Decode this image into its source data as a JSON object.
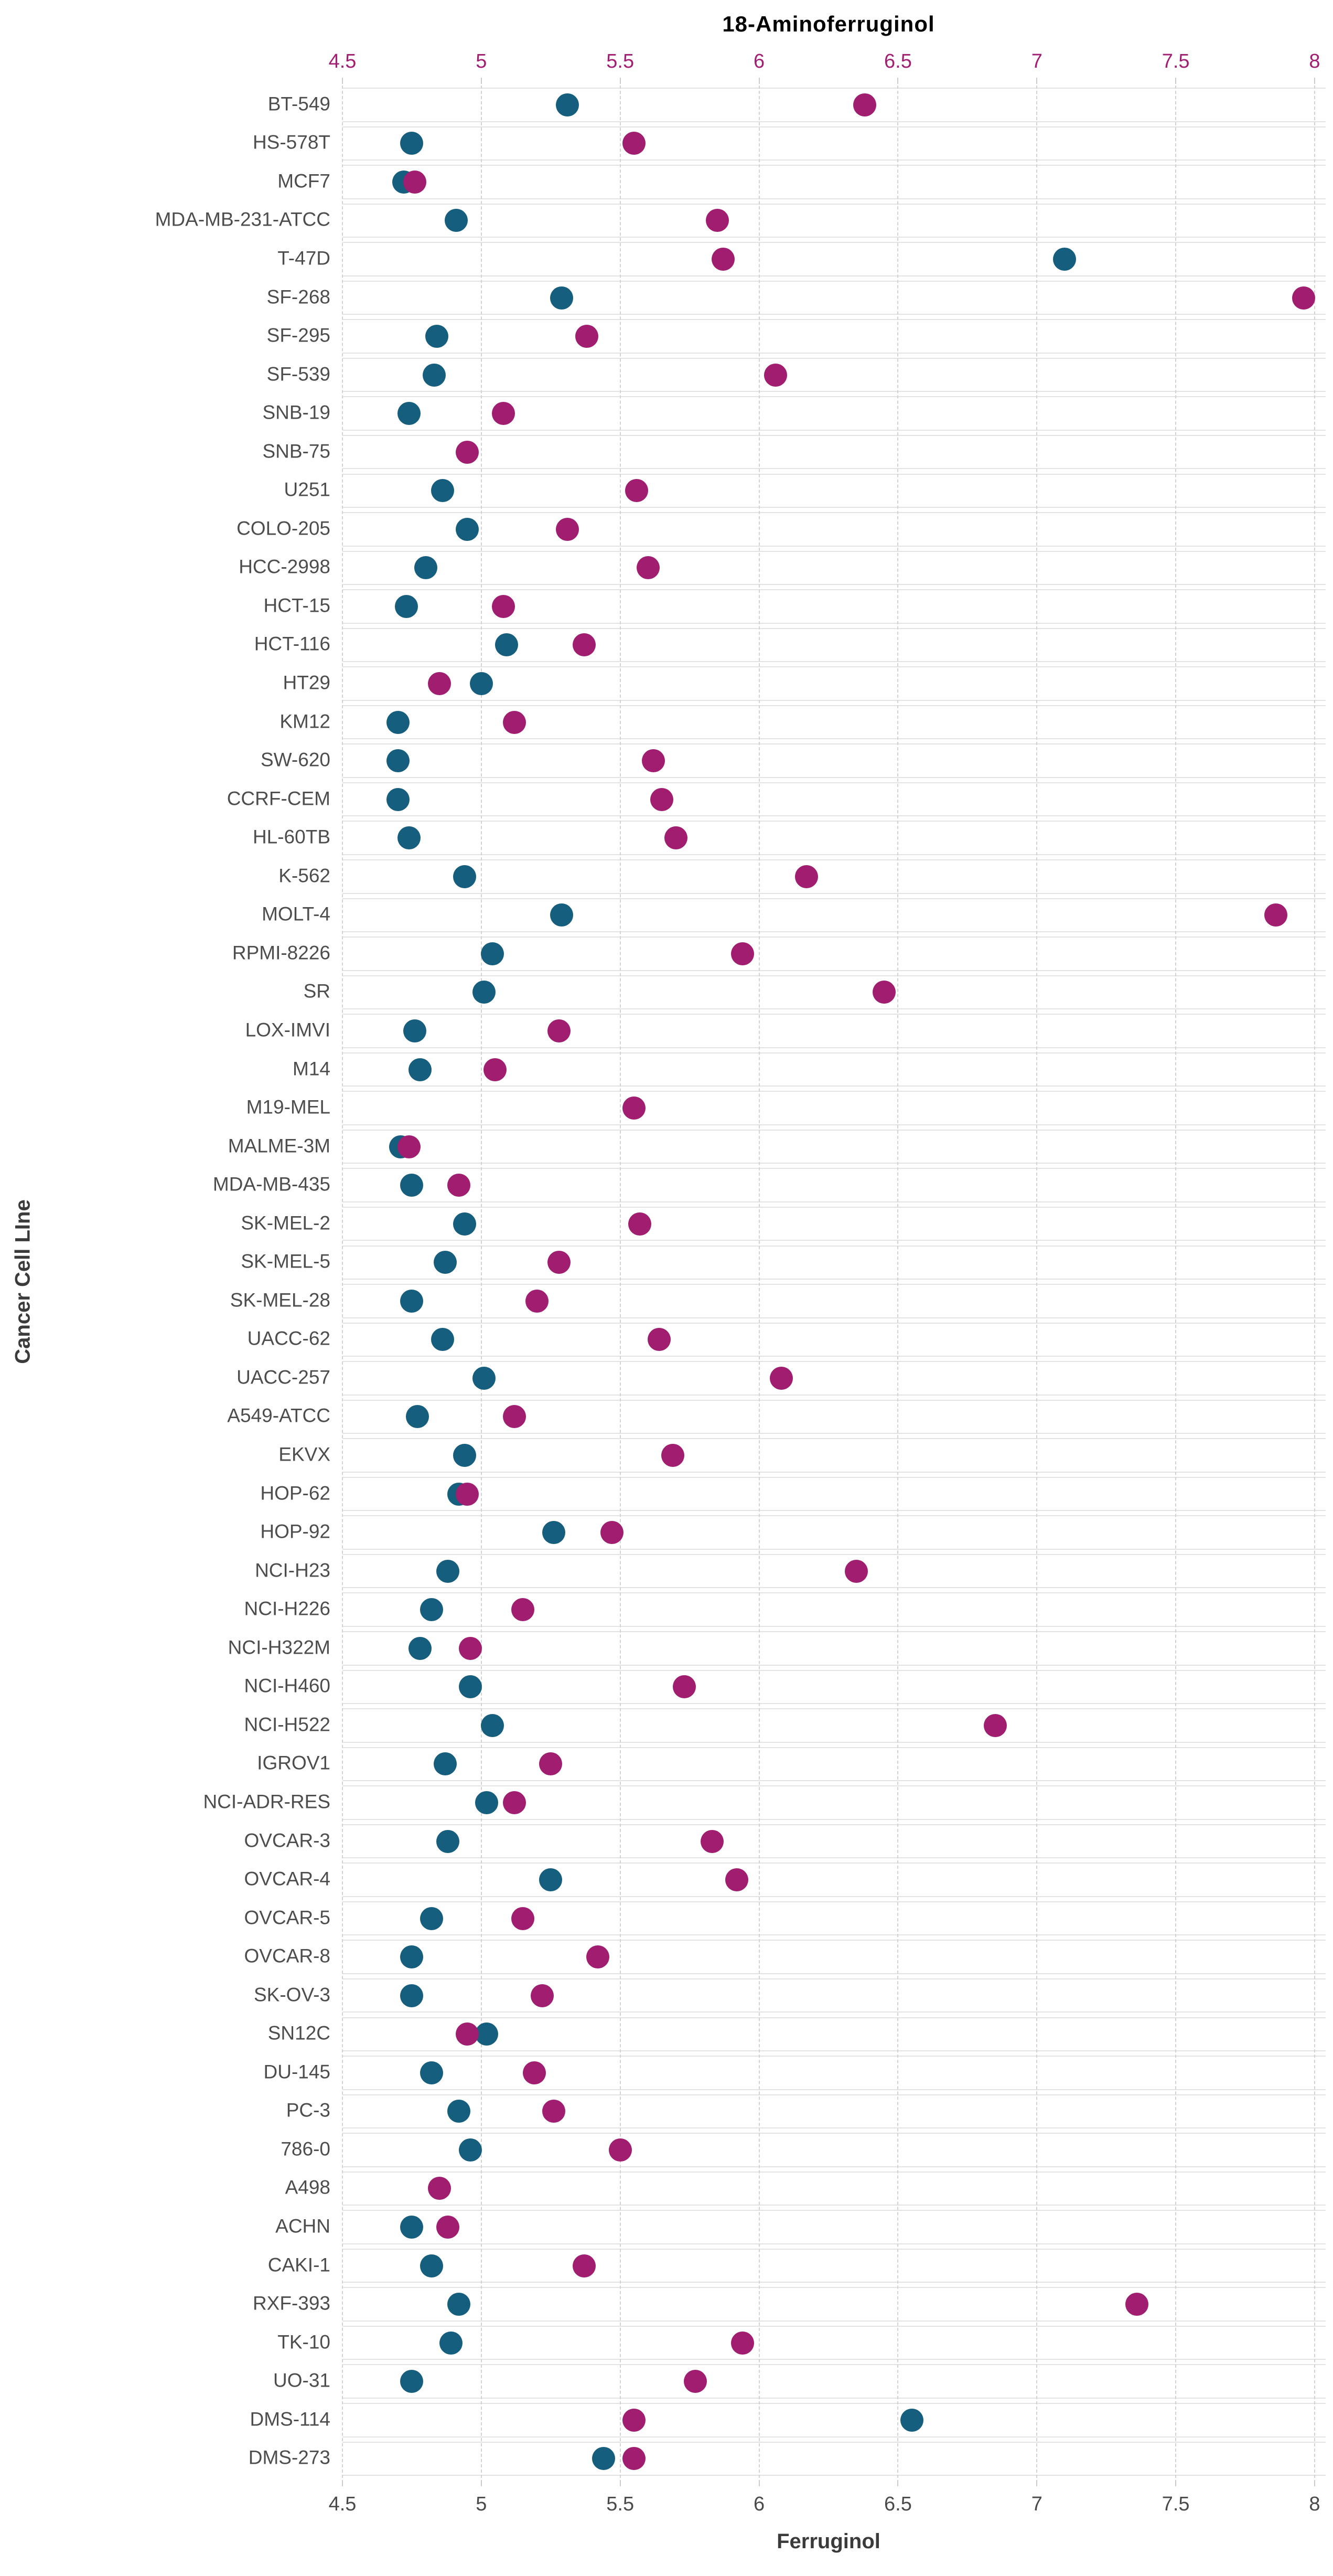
{
  "chart_data": {
    "type": "scatter",
    "variant": "dot-plot",
    "top_axis_label": "18-Aminoferruginol",
    "bottom_axis_label": "Ferruginol",
    "y_axis_label": "Cancer Cell LIne",
    "x_min": 4.5,
    "x_max": 8,
    "x_ticks": [
      "4.5",
      "5",
      "5.5",
      "6",
      "6.5",
      "7",
      "7.5",
      "8"
    ],
    "x_tick_values": [
      4.5,
      5,
      5.5,
      6,
      6.5,
      7,
      7.5,
      8
    ],
    "grid": "vertical-dashed",
    "legend_position": "none",
    "colors": {
      "ferruginol": "#155E7D",
      "aminoferruginol": "#A01D70",
      "top_axis_text": "#A21E73",
      "bottom_axis_text": "#4A4A4A",
      "row_label_text": "#4D4D4D",
      "gridline": "#D2D2D2"
    },
    "categories": [
      "BT-549",
      "HS-578T",
      "MCF7",
      "MDA-MB-231-ATCC",
      "T-47D",
      "SF-268",
      "SF-295",
      "SF-539",
      "SNB-19",
      "SNB-75",
      "U251",
      "COLO-205",
      "HCC-2998",
      "HCT-15",
      "HCT-116",
      "HT29",
      "KM12",
      "SW-620",
      "CCRF-CEM",
      "HL-60TB",
      "K-562",
      "MOLT-4",
      "RPMI-8226",
      "SR",
      "LOX-IMVI",
      "M14",
      "M19-MEL",
      "MALME-3M",
      "MDA-MB-435",
      "SK-MEL-2",
      "SK-MEL-5",
      "SK-MEL-28",
      "UACC-62",
      "UACC-257",
      "A549-ATCC",
      "EKVX",
      "HOP-62",
      "HOP-92",
      "NCI-H23",
      "NCI-H226",
      "NCI-H322M",
      "NCI-H460",
      "NCI-H522",
      "IGROV1",
      "NCI-ADR-RES",
      "OVCAR-3",
      "OVCAR-4",
      "OVCAR-5",
      "OVCAR-8",
      "SK-OV-3",
      "SN12C",
      "DU-145",
      "PC-3",
      "786-0",
      "A498",
      "ACHN",
      "CAKI-1",
      "RXF-393",
      "TK-10",
      "UO-31",
      "DMS-114",
      "DMS-273"
    ],
    "series": [
      {
        "name": "Ferruginol",
        "color": "#155E7D",
        "values": [
          5.31,
          4.75,
          4.72,
          4.91,
          7.1,
          5.29,
          4.84,
          4.83,
          4.74,
          null,
          4.86,
          4.95,
          4.8,
          4.73,
          5.09,
          5.0,
          4.7,
          4.7,
          4.7,
          4.74,
          4.94,
          5.29,
          5.04,
          5.01,
          4.76,
          4.78,
          null,
          4.71,
          4.75,
          4.94,
          4.87,
          4.75,
          4.86,
          5.01,
          4.77,
          4.94,
          4.92,
          5.26,
          4.88,
          4.82,
          4.78,
          4.96,
          5.04,
          4.87,
          5.02,
          4.88,
          5.25,
          4.82,
          4.75,
          4.75,
          5.02,
          4.82,
          4.92,
          4.96,
          null,
          4.75,
          4.82,
          4.92,
          4.89,
          4.75,
          6.55,
          5.44
        ]
      },
      {
        "name": "18-Aminoferruginol",
        "color": "#A01D70",
        "values": [
          6.38,
          5.55,
          4.76,
          5.85,
          5.87,
          7.96,
          5.38,
          6.06,
          5.08,
          4.95,
          5.56,
          5.31,
          5.6,
          5.08,
          5.37,
          4.85,
          5.12,
          5.62,
          5.65,
          5.7,
          6.17,
          7.86,
          5.94,
          6.45,
          5.28,
          5.05,
          5.55,
          4.74,
          4.92,
          5.57,
          5.28,
          5.2,
          5.64,
          6.08,
          5.12,
          5.69,
          4.95,
          5.47,
          6.35,
          5.15,
          4.96,
          5.73,
          6.85,
          5.25,
          5.12,
          5.83,
          5.92,
          5.15,
          5.42,
          5.22,
          4.95,
          5.19,
          5.26,
          5.5,
          4.85,
          4.88,
          5.37,
          7.36,
          5.94,
          5.77,
          5.55,
          5.55
        ]
      }
    ]
  }
}
